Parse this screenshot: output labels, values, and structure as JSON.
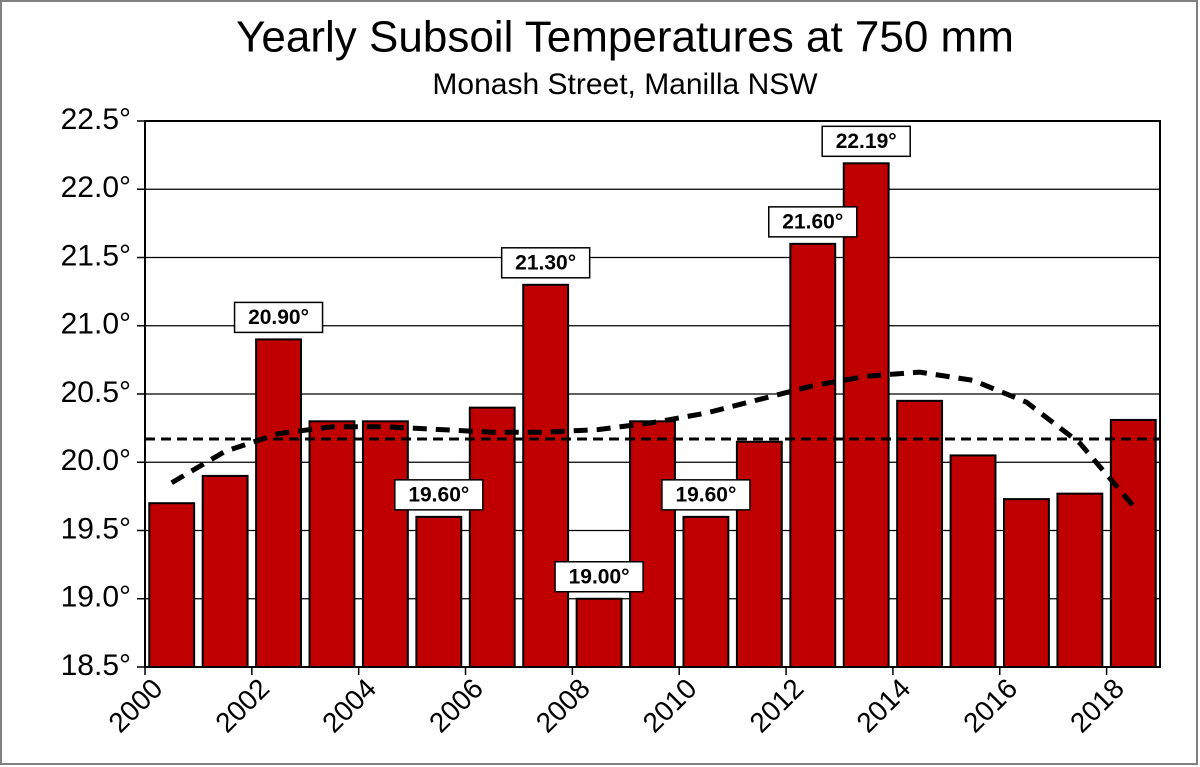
{
  "chart_data": {
    "type": "bar",
    "title": "Yearly Subsoil Temperatures at 750 mm",
    "subtitle": "Monash Street, Manilla NSW",
    "x": [
      2000,
      2001,
      2002,
      2003,
      2004,
      2005,
      2006,
      2007,
      2008,
      2009,
      2010,
      2011,
      2012,
      2013,
      2014,
      2015,
      2016,
      2017,
      2018
    ],
    "values": [
      19.7,
      19.9,
      20.9,
      20.3,
      20.3,
      19.6,
      20.4,
      21.3,
      19.0,
      20.3,
      19.6,
      20.15,
      21.6,
      22.19,
      20.45,
      20.05,
      19.73,
      19.77,
      20.31
    ],
    "value_labels": [
      null,
      null,
      "20.90°",
      null,
      null,
      "19.60°",
      null,
      "21.30°",
      "19.00°",
      null,
      "19.60°",
      null,
      "21.60°",
      "22.19°",
      null,
      null,
      null,
      null,
      null
    ],
    "color": "#c00000",
    "xlim": [
      2000,
      2019
    ],
    "xticks": [
      2000,
      2002,
      2004,
      2006,
      2008,
      2010,
      2012,
      2014,
      2016,
      2018
    ],
    "ylim": [
      18.5,
      22.5
    ],
    "yticks": [
      {
        "value": 18.5,
        "label": "18.5°"
      },
      {
        "value": 19.0,
        "label": "19.0°"
      },
      {
        "value": 19.5,
        "label": "19.5°"
      },
      {
        "value": 20.0,
        "label": "20.0°"
      },
      {
        "value": 20.5,
        "label": "20.5°"
      },
      {
        "value": 21.0,
        "label": "21.0°"
      },
      {
        "value": 21.5,
        "label": "21.5°"
      },
      {
        "value": 22.0,
        "label": "22.0°"
      },
      {
        "value": 22.5,
        "label": "22.5°"
      }
    ],
    "grid": true,
    "mean": 20.17,
    "trend": {
      "x": [
        2000.5,
        2001.5,
        2002.5,
        2003.5,
        2004.5,
        2005.5,
        2006.5,
        2007.5,
        2008.5,
        2009.5,
        2010.5,
        2011.5,
        2012.5,
        2013.5,
        2014.5,
        2015.5,
        2016.5,
        2017.5,
        2018.5
      ],
      "values": [
        19.85,
        20.08,
        20.21,
        20.26,
        20.26,
        20.24,
        20.22,
        20.22,
        20.24,
        20.29,
        20.36,
        20.46,
        20.56,
        20.63,
        20.66,
        20.6,
        20.44,
        20.14,
        19.68
      ]
    }
  }
}
